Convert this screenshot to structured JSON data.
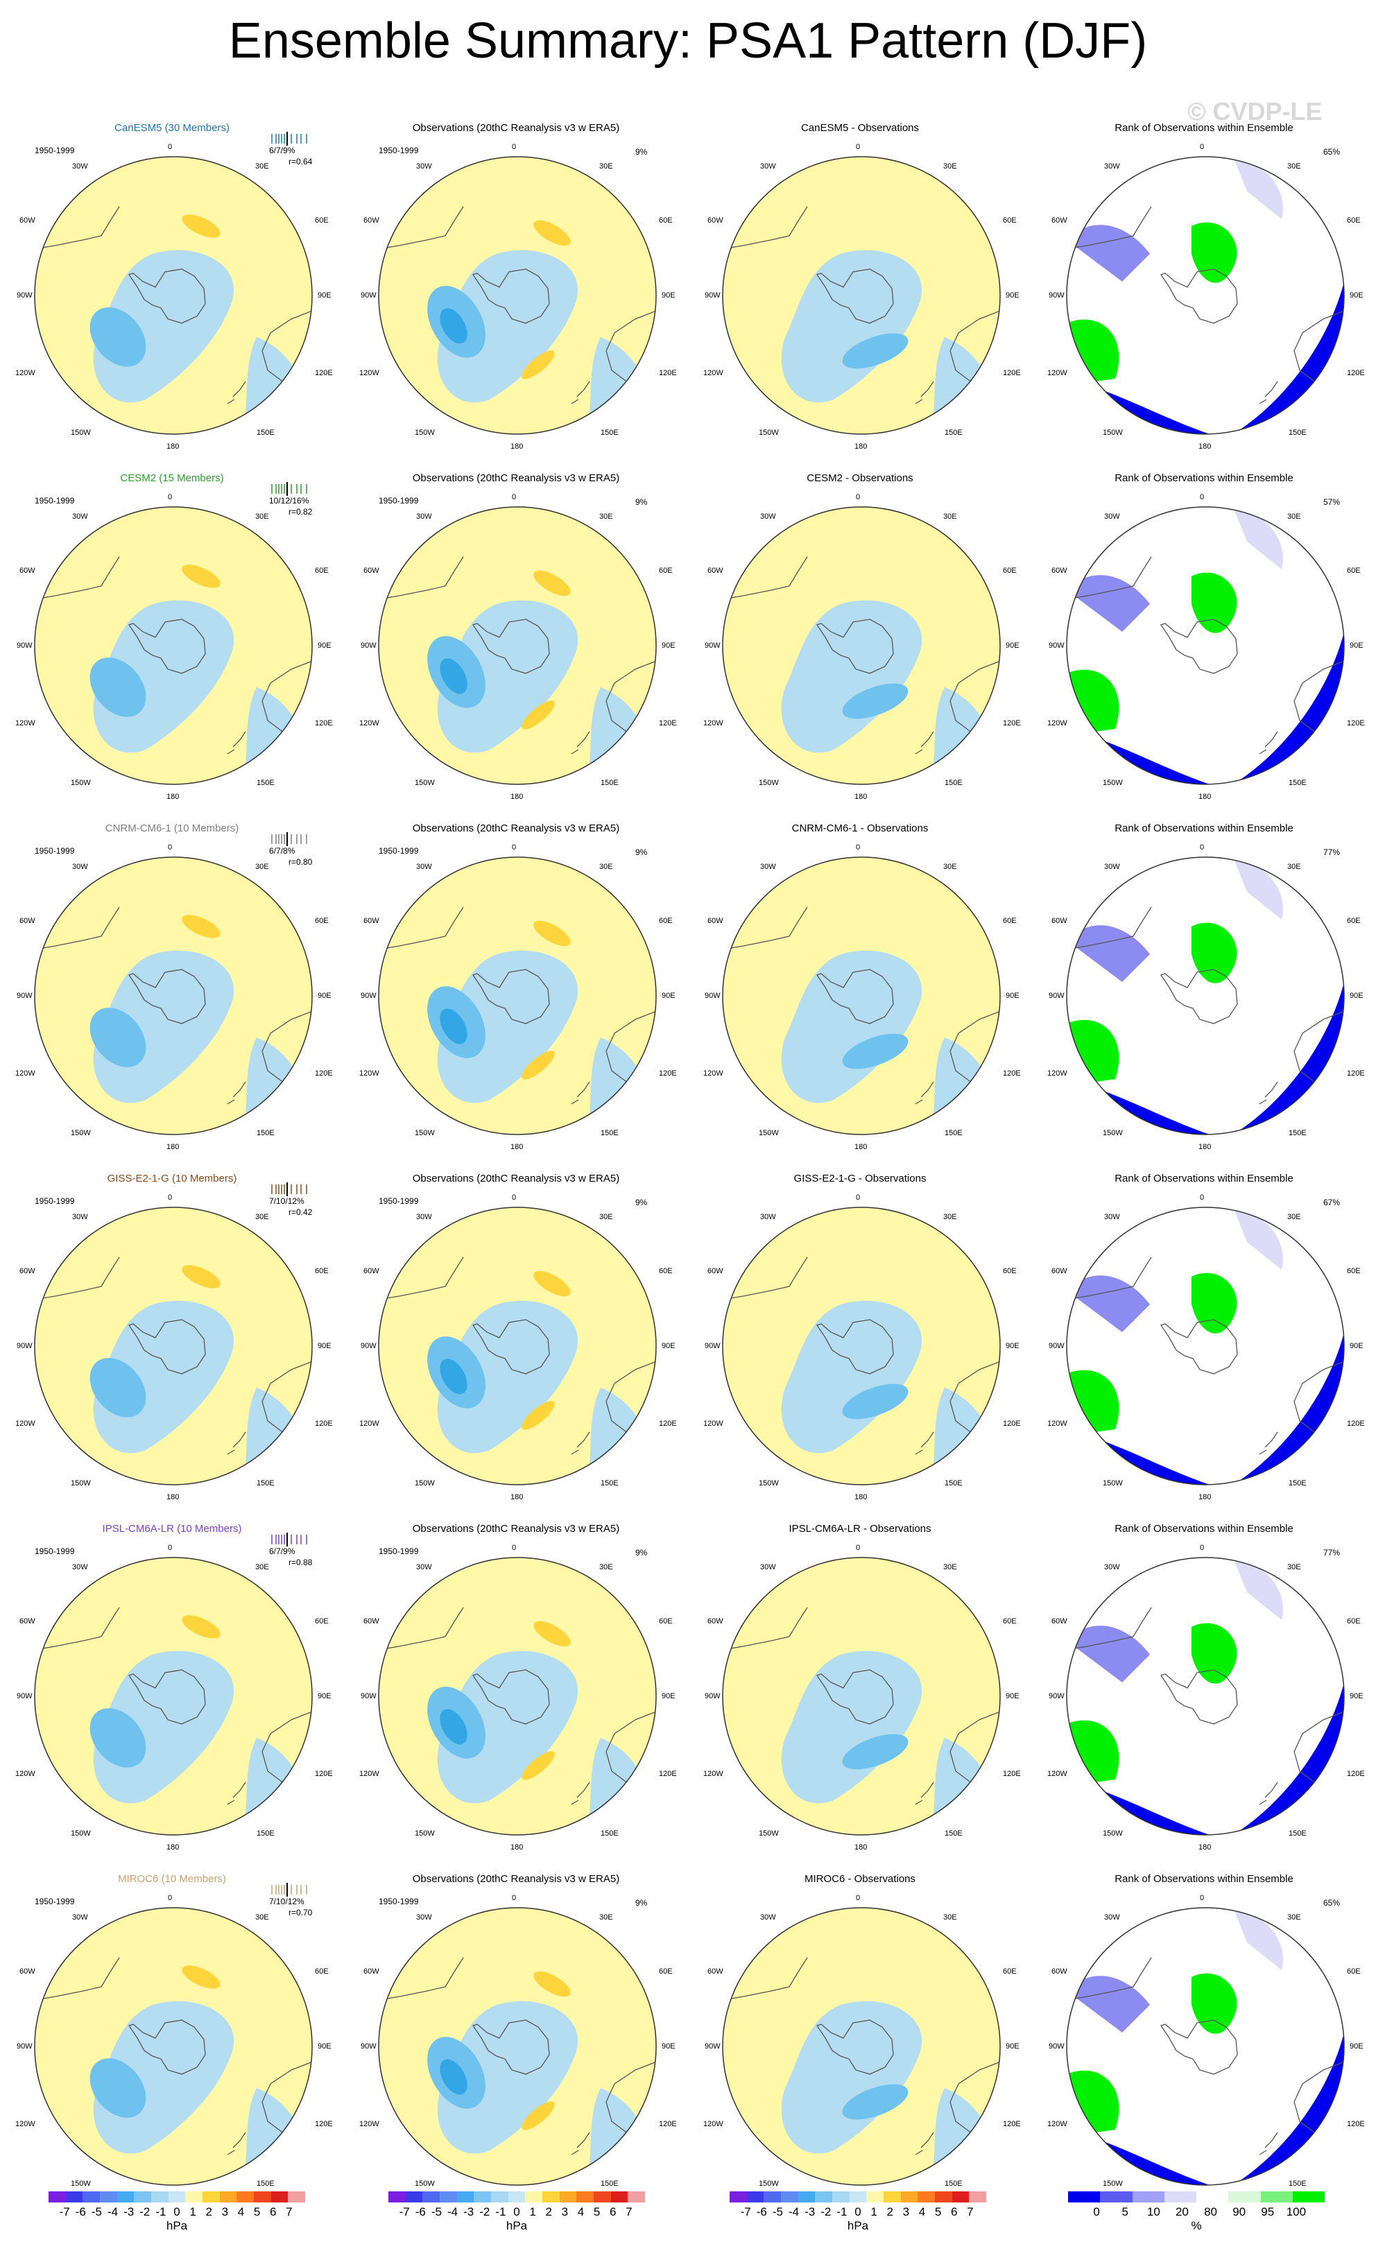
{
  "title": "Ensemble Summary: PSA1 Pattern (DJF)",
  "watermark": "© CVDP-LE",
  "period": "1950-1999",
  "obs_title": "Observations (20thC Reanalysis v3 w ERA5)",
  "rank_title": "Rank of Observations within Ensemble",
  "obs_pct": "9%",
  "lon_labels": {
    "top": "0",
    "tr": "30E",
    "tl": "30W",
    "r1": "60E",
    "l1": "60W",
    "r2": "90E",
    "l2": "90W",
    "r3": "120E",
    "l3": "120W",
    "br": "150E",
    "bl": "150W",
    "bottom": "180"
  },
  "colors": {
    "yellow": "#fff8a8",
    "lightblue": "#b4ddf2",
    "blue": "#6fc2ee",
    "deepblue": "#33a6e6",
    "orange": "#fed43c",
    "rank_green": "#00f000",
    "rank_lightgreen": "#d8f8d8",
    "rank_blue": "#0000ee",
    "rank_mid": "#8b8bf2",
    "rank_light": "#dcdcf8"
  },
  "rows": [
    {
      "model": "CanESM5 (30 Members)",
      "model_color": "#1f77b4",
      "stats": "6/7/9%",
      "r": "r=0.64",
      "diff_title": "CanESM5 - Observations",
      "rank_pct": "65%"
    },
    {
      "model": "CESM2 (15 Members)",
      "model_color": "#2ca02c",
      "stats": "10/12/16%",
      "r": "r=0.82",
      "diff_title": "CESM2 - Observations",
      "rank_pct": "57%"
    },
    {
      "model": "CNRM-CM6-1 (10 Members)",
      "model_color": "#7f7f7f",
      "stats": "6/7/8%",
      "r": "r=0.80",
      "diff_title": "CNRM-CM6-1 - Observations",
      "rank_pct": "77%"
    },
    {
      "model": "GISS-E2-1-G (10 Members)",
      "model_color": "#8c4a1a",
      "stats": "7/10/12%",
      "r": "r=0.42",
      "diff_title": "GISS-E2-1-G - Observations",
      "rank_pct": "67%"
    },
    {
      "model": "IPSL-CM6A-LR (10 Members)",
      "model_color": "#7b3fd0",
      "stats": "6/7/9%",
      "r": "r=0.88",
      "diff_title": "IPSL-CM6A-LR - Observations",
      "rank_pct": "77%"
    },
    {
      "model": "MIROC6 (10 Members)",
      "model_color": "#c8a070",
      "stats": "7/10/12%",
      "r": "r=0.70",
      "diff_title": "MIROC6 - Observations",
      "rank_pct": "65%"
    }
  ],
  "colorbar_hpa": {
    "ticks": [
      "-7",
      "-6",
      "-5",
      "-4",
      "-3",
      "-2",
      "-1",
      "0",
      "1",
      "2",
      "3",
      "4",
      "5",
      "6",
      "7"
    ],
    "unit": "hPa",
    "colors": [
      "#7a1fe0",
      "#3a3ae8",
      "#4f6af0",
      "#5f8cf2",
      "#45aaf0",
      "#7cc4f2",
      "#a8d8f2",
      "#c8e6f4",
      "#fff8a8",
      "#fed43c",
      "#fea828",
      "#fe7a1e",
      "#f0461e",
      "#dc1e1e",
      "#f0a0a0"
    ]
  },
  "colorbar_rank": {
    "ticks": [
      "0",
      "5",
      "10",
      "20",
      "80",
      "90",
      "95",
      "100"
    ],
    "unit": "%",
    "colors": [
      "#0000ee",
      "#5b5bf0",
      "#a0a0f4",
      "#dcdcf8",
      "#ffffff",
      "#d8f8d8",
      "#7cf07c",
      "#00f000"
    ]
  }
}
